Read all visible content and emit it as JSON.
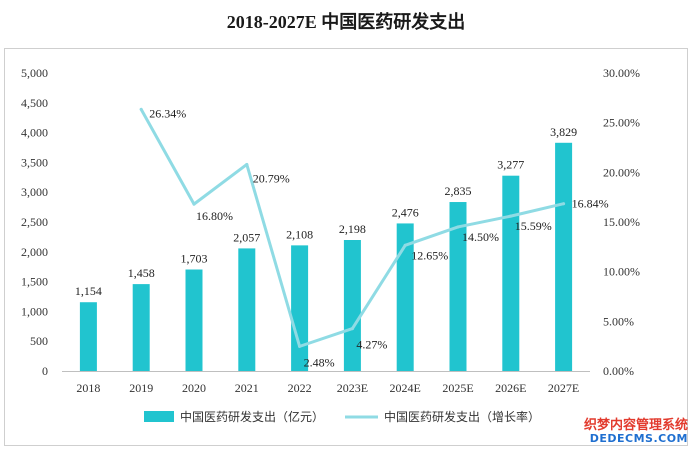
{
  "chart_data": {
    "type": "bar",
    "title": "2018-2027E 中国医药研发支出",
    "categories": [
      "2018",
      "2019",
      "2020",
      "2021",
      "2022",
      "2023E",
      "2024E",
      "2025E",
      "2026E",
      "2027E"
    ],
    "series": [
      {
        "name": "中国医药研发支出（亿元）",
        "type": "bar",
        "axis": "left",
        "values": [
          1154,
          1458,
          1703,
          2057,
          2108,
          2198,
          2476,
          2835,
          3277,
          3829
        ],
        "labels": [
          "1,154",
          "1,458",
          "1,703",
          "2,057",
          "2,108",
          "2,198",
          "2,476",
          "2,835",
          "3,277",
          "3,829"
        ],
        "color": "#21c4cf"
      },
      {
        "name": "中国医药研发支出（增长率）",
        "type": "line",
        "axis": "right",
        "values": [
          null,
          26.34,
          16.8,
          20.79,
          2.48,
          4.27,
          12.65,
          14.5,
          15.59,
          16.84
        ],
        "labels": [
          "",
          "26.34%",
          "16.80%",
          "20.79%",
          "2.48%",
          "4.27%",
          "12.65%",
          "14.50%",
          "15.59%",
          "16.84%"
        ],
        "color": "#8fdbe4"
      }
    ],
    "y_left": {
      "min": 0,
      "max": 5000,
      "step": 500,
      "tick_labels": [
        "0",
        "500",
        "1,000",
        "1,500",
        "2,000",
        "2,500",
        "3,000",
        "3,500",
        "4,000",
        "4,500",
        "5,000"
      ]
    },
    "y_right": {
      "min": 0,
      "max": 30,
      "step": 5,
      "tick_labels": [
        "0.00%",
        "5.00%",
        "10.00%",
        "15.00%",
        "20.00%",
        "25.00%",
        "30.00%"
      ]
    },
    "grid": false,
    "legend": "bottom"
  },
  "watermark": {
    "line1": "织梦内容管理系统",
    "line2": "DEDECMS.COM"
  }
}
